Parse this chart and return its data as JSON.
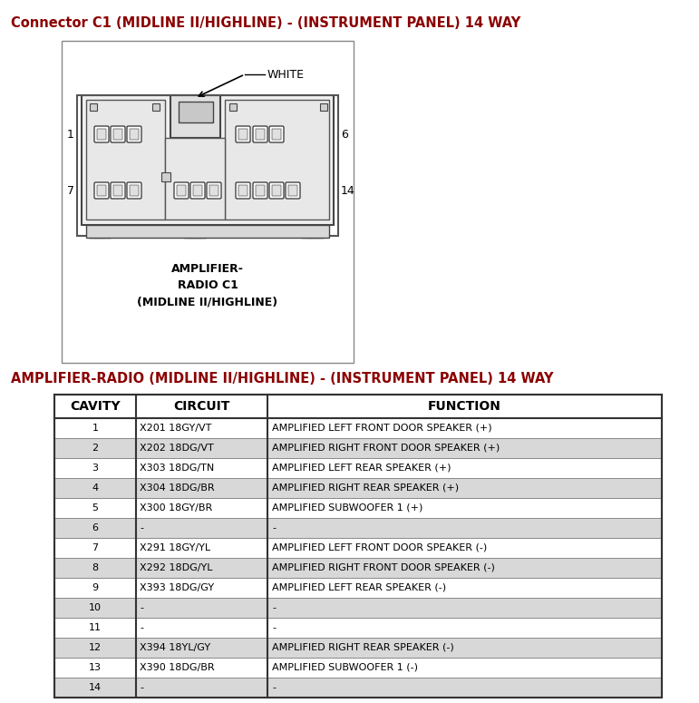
{
  "title1": "Connector C1 (MIDLINE II/HIGHLINE) - (INSTRUMENT PANEL) 14 WAY",
  "title1_color": "#8B0000",
  "title2": "AMPLIFIER-RADIO (MIDLINE II/HIGHLINE) - (INSTRUMENT PANEL) 14 WAY",
  "title2_color": "#8B0000",
  "connector_label_lines": [
    "AMPLIFIER-",
    "RADIO C1",
    "(MIDLINE II/HIGHLINE)"
  ],
  "white_label": "WHITE",
  "bg_color": "#FFFFFF",
  "table_header": [
    "CAVITY",
    "CIRCUIT",
    "FUNCTION"
  ],
  "table_rows": [
    [
      "1",
      "X201 18GY/VT",
      "AMPLIFIED LEFT FRONT DOOR SPEAKER (+)"
    ],
    [
      "2",
      "X202 18DG/VT",
      "AMPLIFIED RIGHT FRONT DOOR SPEAKER (+)"
    ],
    [
      "3",
      "X303 18DG/TN",
      "AMPLIFIED LEFT REAR SPEAKER (+)"
    ],
    [
      "4",
      "X304 18DG/BR",
      "AMPLIFIED RIGHT REAR SPEAKER (+)"
    ],
    [
      "5",
      "X300 18GY/BR",
      "AMPLIFIED SUBWOOFER 1 (+)"
    ],
    [
      "6",
      "-",
      "-"
    ],
    [
      "7",
      "X291 18GY/YL",
      "AMPLIFIED LEFT FRONT DOOR SPEAKER (-)"
    ],
    [
      "8",
      "X292 18DG/YL",
      "AMPLIFIED RIGHT FRONT DOOR SPEAKER (-)"
    ],
    [
      "9",
      "X393 18DG/GY",
      "AMPLIFIED LEFT REAR SPEAKER (-)"
    ],
    [
      "10",
      "-",
      "-"
    ],
    [
      "11",
      "-",
      "-"
    ],
    [
      "12",
      "X394 18YL/GY",
      "AMPLIFIED RIGHT REAR SPEAKER (-)"
    ],
    [
      "13",
      "X390 18DG/BR",
      "AMPLIFIED SUBWOOFER 1 (-)"
    ],
    [
      "14",
      "-",
      "-"
    ]
  ],
  "shaded_rows": [
    1,
    3,
    5,
    7,
    9,
    11,
    13
  ],
  "shade_color": "#D8D8D8",
  "table_border": "#333333"
}
